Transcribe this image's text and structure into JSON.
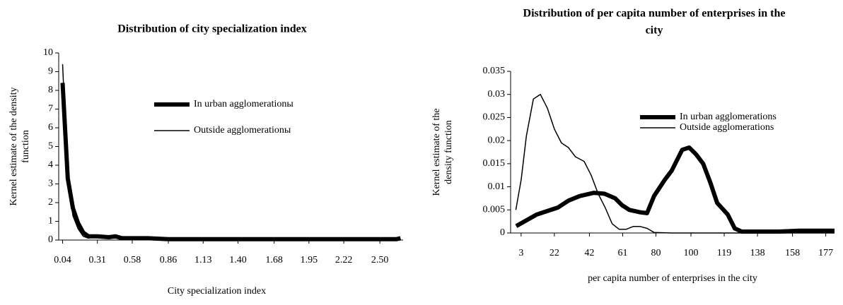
{
  "chart_data": [
    {
      "type": "line",
      "title": [
        "Distribution of city specialization index"
      ],
      "xlabel": "City specialization index",
      "ylabel": [
        "Kernel estimate of the density",
        "function"
      ],
      "xlim": [
        0.01,
        2.68
      ],
      "ylim": [
        0,
        10
      ],
      "xticks": [
        0.04,
        0.31,
        0.58,
        0.86,
        1.13,
        {
          "value": 1.4,
          "label": "1.40"
        },
        1.68,
        1.95,
        2.22,
        {
          "value": 2.5,
          "label": "2.50"
        }
      ],
      "yticks": [
        0,
        1,
        2,
        3,
        4,
        5,
        6,
        7,
        8,
        9,
        10
      ],
      "series": [
        {
          "name": "In urban agglomerationы",
          "color": "#000000",
          "line_width": 6,
          "x": [
            0.04,
            0.08,
            0.12,
            0.16,
            0.2,
            0.24,
            0.28,
            0.31,
            0.4,
            0.45,
            0.5,
            0.58,
            0.7,
            0.86,
            1.13,
            1.4,
            1.68,
            1.95,
            2.1,
            2.15,
            2.22,
            2.5,
            2.63,
            2.66
          ],
          "values": [
            8.4,
            3.3,
            1.7,
            0.9,
            0.4,
            0.2,
            0.2,
            0.2,
            0.15,
            0.2,
            0.1,
            0.1,
            0.1,
            0.05,
            0.05,
            0.05,
            0.05,
            0.05,
            0.05,
            0.05,
            0.05,
            0.05,
            0.05,
            0.1
          ]
        },
        {
          "name": "Outside agglomerationы",
          "color": "#000000",
          "line_width": 1.5,
          "x": [
            0.04,
            0.08,
            0.12,
            0.16,
            0.2,
            0.24,
            0.28,
            0.31,
            0.4,
            0.45,
            0.5,
            0.58,
            0.7,
            0.86,
            1.13,
            1.4,
            1.68,
            1.95,
            2.1,
            2.15,
            2.22,
            2.5,
            2.63,
            2.66
          ],
          "values": [
            9.4,
            3.3,
            1.3,
            0.6,
            0.2,
            0.1,
            0.2,
            0.2,
            0.1,
            0.1,
            0.1,
            0.1,
            0.1,
            0.05,
            0.05,
            0.05,
            0.05,
            0.05,
            0.05,
            0.1,
            0.05,
            0.05,
            0.05,
            0.05
          ]
        }
      ]
    },
    {
      "type": "line",
      "title": [
        "Distribution of per capita number of enterprises in the",
        "city"
      ],
      "xlabel": "per capita number of enterprises in the city",
      "ylabel": [
        "Kernel estimate of the",
        "density function"
      ],
      "xlim": [
        -3,
        182
      ],
      "ylim": [
        0,
        0.035
      ],
      "xticks": [
        3,
        22,
        42,
        61,
        80,
        100,
        119,
        138,
        158,
        177
      ],
      "yticks": [
        0,
        0.005,
        0.01,
        0.015,
        0.02,
        0.025,
        0.03,
        0.035
      ],
      "series": [
        {
          "name": "In urban agglomerations",
          "color": "#000000",
          "line_width": 6,
          "x": [
            0.2,
            12,
            24,
            30,
            36.5,
            44.6,
            50.6,
            56.7,
            60.7,
            64.8,
            70.8,
            74.9,
            78.9,
            85,
            89,
            95,
            99,
            103,
            107,
            111,
            115,
            121,
            125,
            129,
            150,
            162,
            182
          ],
          "values": [
            0.0015,
            0.004,
            0.0055,
            0.007,
            0.008,
            0.0087,
            0.0085,
            0.0075,
            0.006,
            0.005,
            0.0045,
            0.0043,
            0.008,
            0.0115,
            0.0135,
            0.018,
            0.0185,
            0.017,
            0.015,
            0.011,
            0.0065,
            0.004,
            0.001,
            0.0003,
            0.0003,
            0.0005,
            0.0005
          ]
        },
        {
          "name": "Outside agglomerations",
          "color": "#000000",
          "line_width": 1.5,
          "x": [
            0,
            3,
            6,
            10,
            14,
            18,
            22,
            26,
            30,
            34,
            39,
            43,
            47,
            51,
            55,
            59,
            63,
            67,
            71,
            75,
            79,
            89,
            182
          ],
          "values": [
            0.005,
            0.0115,
            0.021,
            0.029,
            0.03,
            0.027,
            0.0225,
            0.0195,
            0.0185,
            0.0165,
            0.0155,
            0.0125,
            0.0085,
            0.0055,
            0.002,
            0.0008,
            0.0008,
            0.0014,
            0.0014,
            0.001,
            0.0001,
            0,
            0
          ]
        }
      ]
    }
  ]
}
